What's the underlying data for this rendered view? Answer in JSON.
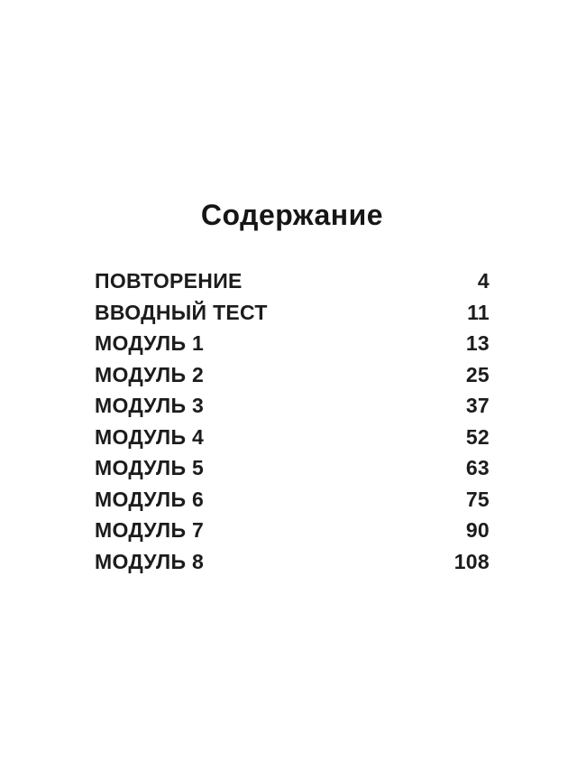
{
  "toc": {
    "title": "Содержание",
    "entries": [
      {
        "label": "ПОВТОРЕНИЕ",
        "page": "4"
      },
      {
        "label": "ВВОДНЫЙ ТЕСТ",
        "page": "11"
      },
      {
        "label": "МОДУЛЬ 1",
        "page": "13"
      },
      {
        "label": "МОДУЛЬ 2",
        "page": "25"
      },
      {
        "label": "МОДУЛЬ 3",
        "page": "37"
      },
      {
        "label": "МОДУЛЬ 4",
        "page": "52"
      },
      {
        "label": "МОДУЛЬ 5",
        "page": "63"
      },
      {
        "label": "МОДУЛЬ 6",
        "page": "75"
      },
      {
        "label": "МОДУЛЬ 7",
        "page": "90"
      },
      {
        "label": "МОДУЛЬ 8",
        "page": "108"
      }
    ]
  }
}
